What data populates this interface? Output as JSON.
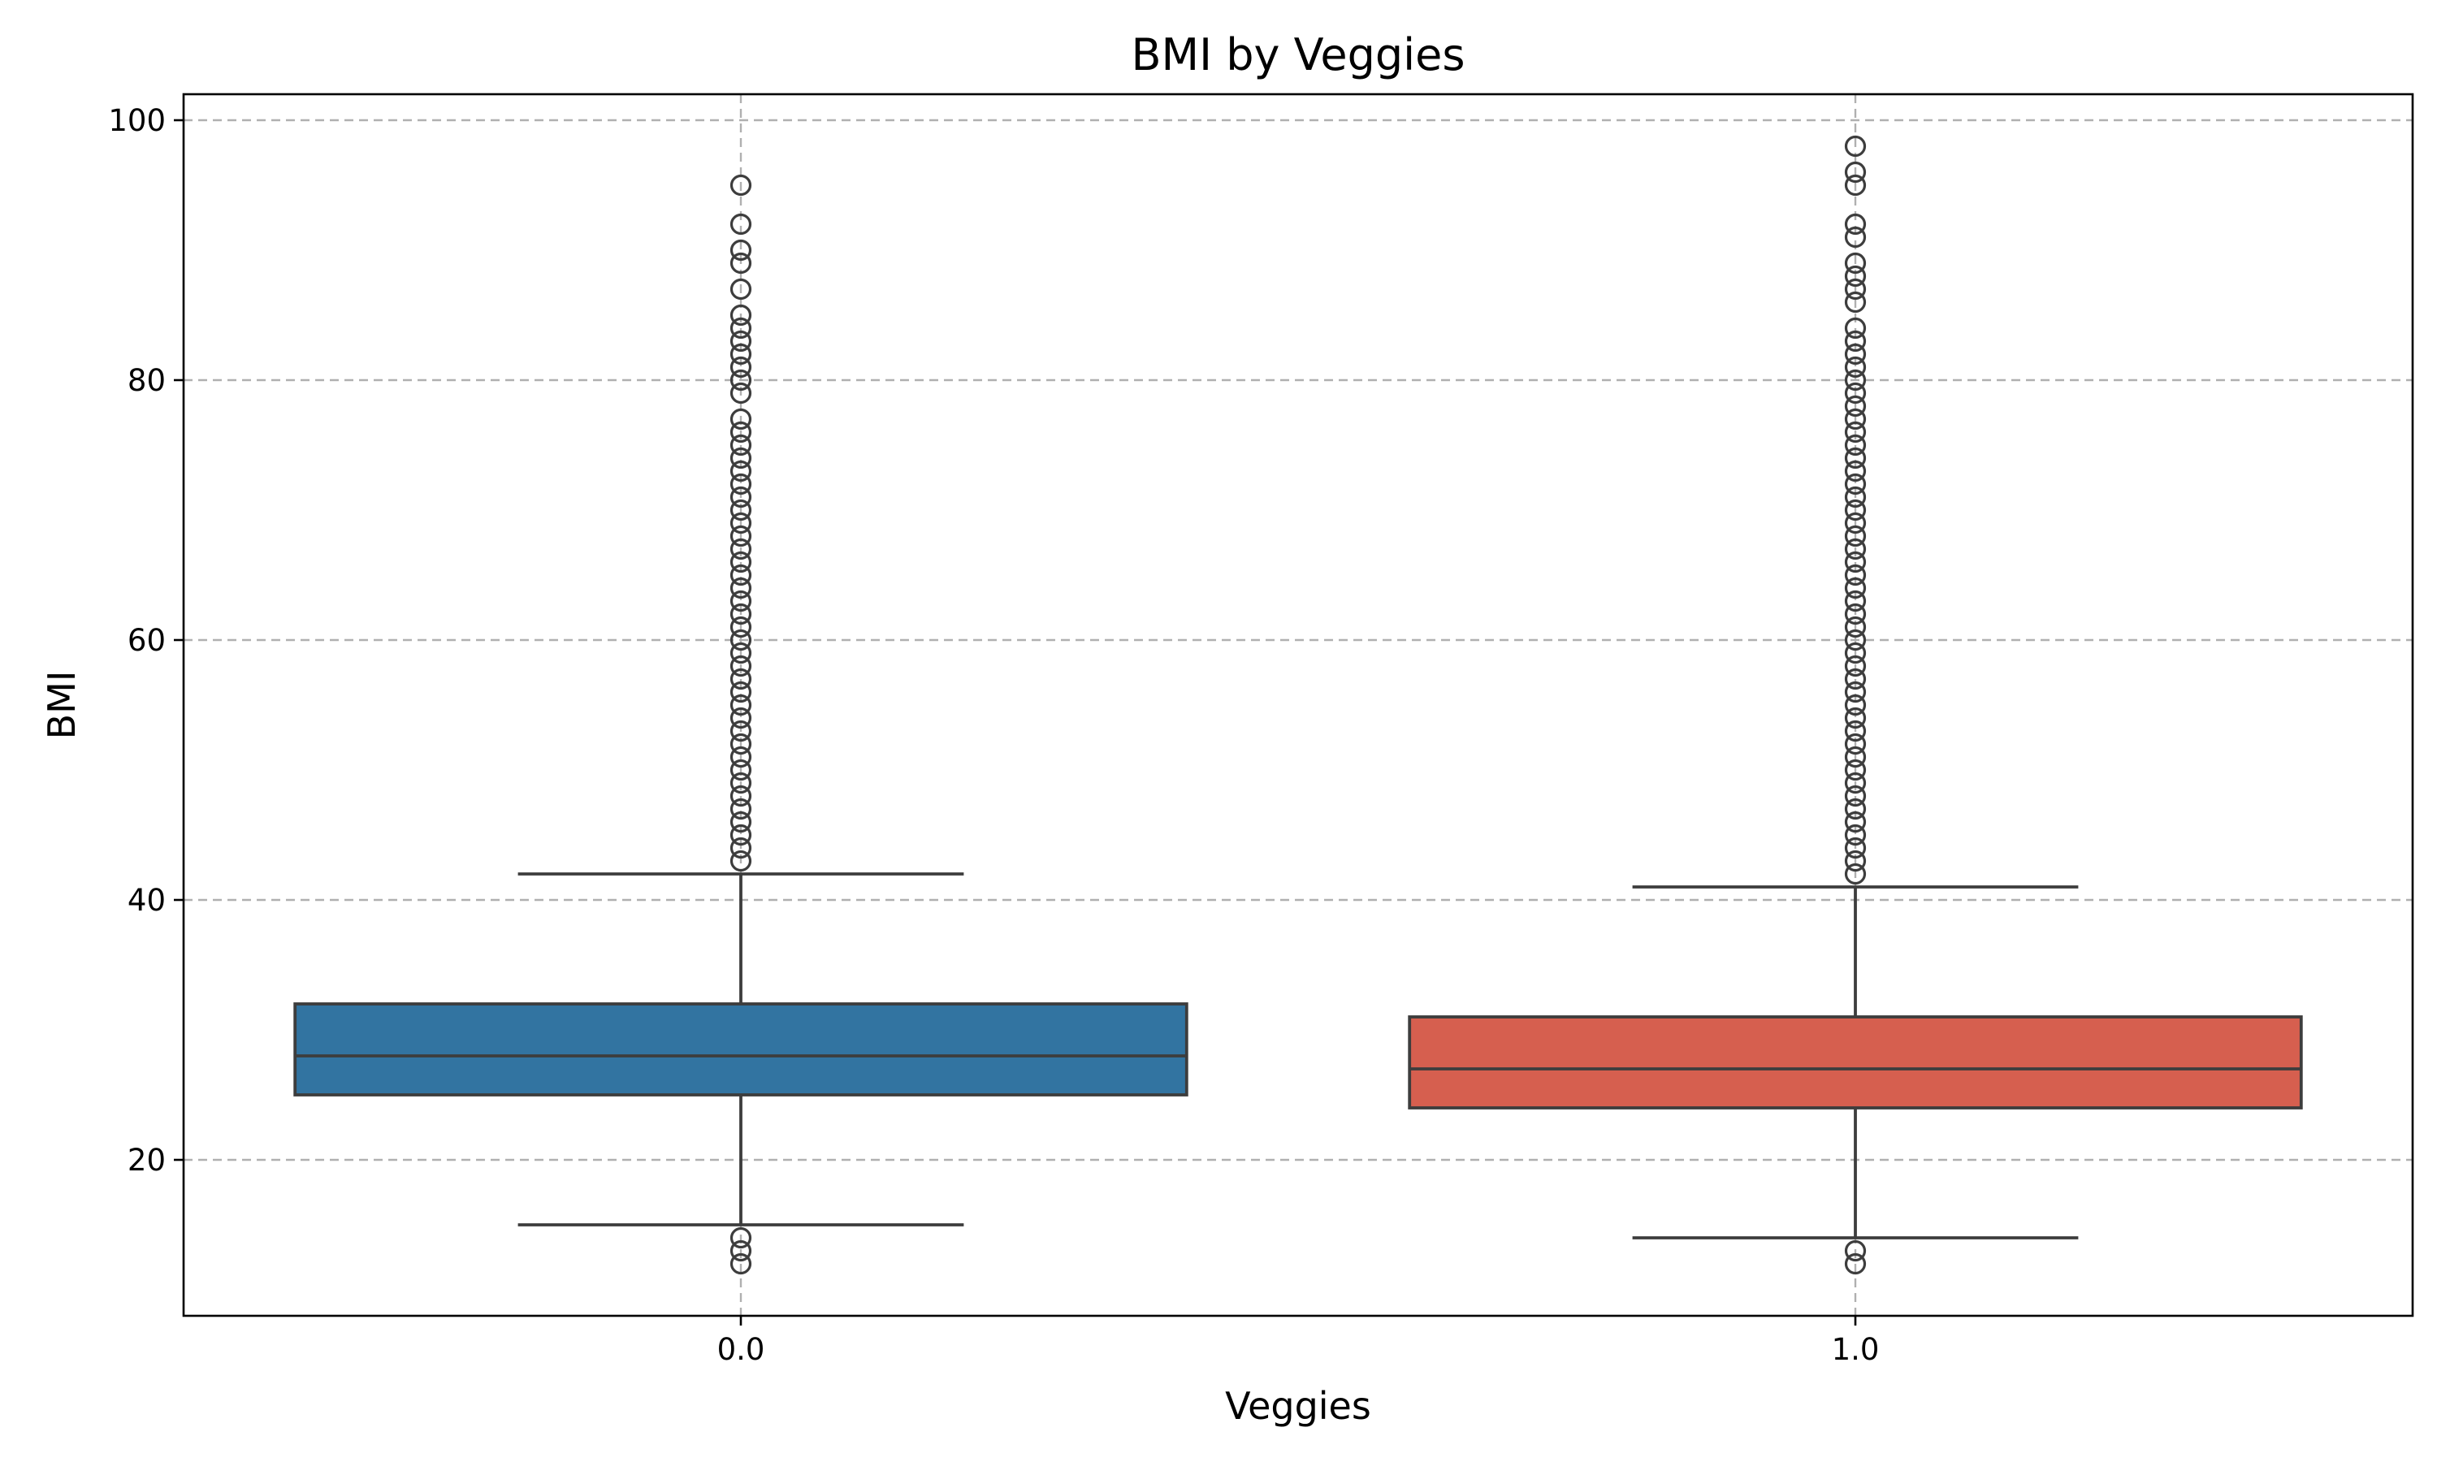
{
  "chart_data": {
    "type": "box",
    "title": "BMI by Veggies",
    "xlabel": "Veggies",
    "ylabel": "BMI",
    "categories": [
      "0.0",
      "1.0"
    ],
    "ylim": [
      8,
      102
    ],
    "yticks": [
      20,
      40,
      60,
      80,
      100
    ],
    "grid": true,
    "legend": "none",
    "boxes": [
      {
        "category": "0.0",
        "color": "#3274a1",
        "whisker_low": 15,
        "q1": 25,
        "median": 28,
        "q3": 32,
        "whisker_high": 42,
        "outliers": [
          12,
          13,
          14,
          43,
          44,
          45,
          46,
          47,
          48,
          49,
          50,
          51,
          52,
          53,
          54,
          55,
          56,
          57,
          58,
          59,
          60,
          61,
          62,
          63,
          64,
          65,
          66,
          67,
          68,
          69,
          70,
          71,
          72,
          73,
          74,
          75,
          76,
          77,
          79,
          80,
          81,
          82,
          83,
          84,
          85,
          87,
          89,
          90,
          92,
          95
        ]
      },
      {
        "category": "1.0",
        "color": "#d65f4f",
        "whisker_low": 14,
        "q1": 24,
        "median": 27,
        "q3": 31,
        "whisker_high": 41,
        "outliers": [
          12,
          13,
          42,
          43,
          44,
          45,
          46,
          47,
          48,
          49,
          50,
          51,
          52,
          53,
          54,
          55,
          56,
          57,
          58,
          59,
          60,
          61,
          62,
          63,
          64,
          65,
          66,
          67,
          68,
          69,
          70,
          71,
          72,
          73,
          74,
          75,
          76,
          77,
          78,
          79,
          80,
          81,
          82,
          83,
          84,
          86,
          87,
          88,
          89,
          91,
          92,
          95,
          96,
          98
        ]
      }
    ]
  }
}
